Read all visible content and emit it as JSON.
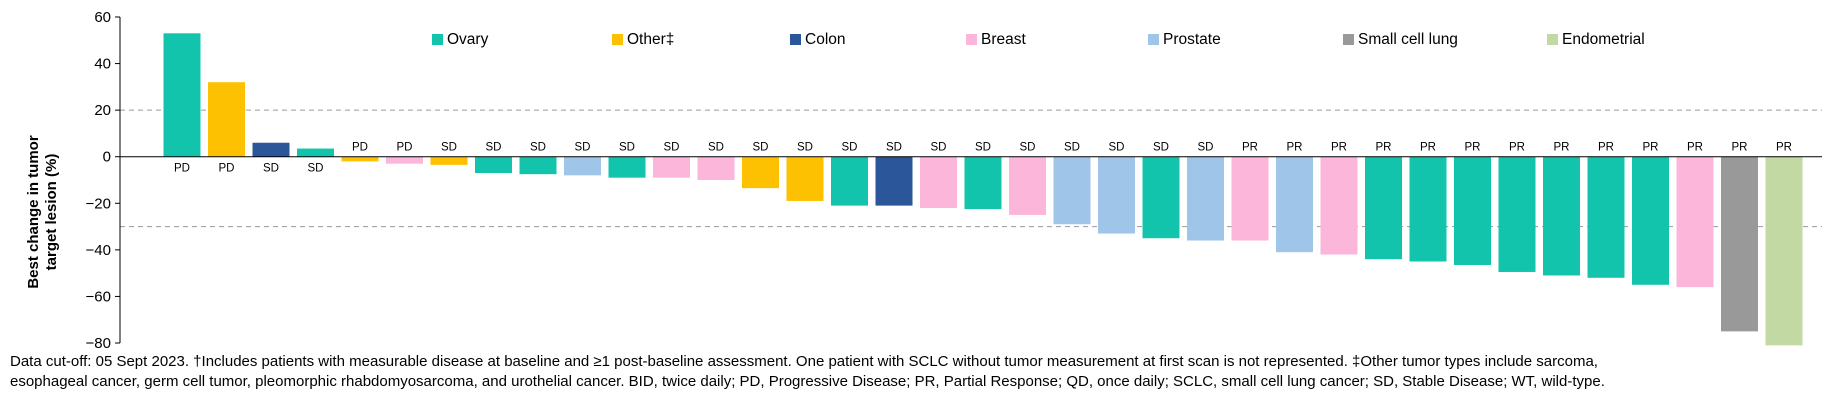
{
  "chart_data": {
    "type": "bar",
    "ylabel": "Best change in tumor target lesion (%)",
    "ylabel_lines": [
      "Best change in tumor",
      "target lesion (%)"
    ],
    "ylim": [
      -80,
      60
    ],
    "yticks": [
      -80,
      -60,
      -40,
      -20,
      0,
      20,
      40,
      60
    ],
    "reference_lines": [
      20,
      -30
    ],
    "grid": false,
    "legend_position": "top",
    "legend": [
      {
        "name": "Ovary",
        "color": "#13C4AC"
      },
      {
        "name": "Other‡",
        "color": "#FDC102"
      },
      {
        "name": "Colon",
        "color": "#2B579A"
      },
      {
        "name": "Breast",
        "color": "#FBB6DA"
      },
      {
        "name": "Prostate",
        "color": "#9FC5E8"
      },
      {
        "name": "Small cell lung",
        "color": "#999999"
      },
      {
        "name": "Endometrial",
        "color": "#C2D9A3"
      }
    ],
    "bars": [
      {
        "type": "Ovary",
        "value": 53,
        "response": "PD"
      },
      {
        "type": "Other‡",
        "value": 32,
        "response": "PD"
      },
      {
        "type": "Colon",
        "value": 6,
        "response": "SD"
      },
      {
        "type": "Ovary",
        "value": 3.5,
        "response": "SD"
      },
      {
        "type": "Other‡",
        "value": -2,
        "response": "PD"
      },
      {
        "type": "Breast",
        "value": -3,
        "response": "PD"
      },
      {
        "type": "Other‡",
        "value": -3.5,
        "response": "SD"
      },
      {
        "type": "Ovary",
        "value": -7,
        "response": "SD"
      },
      {
        "type": "Ovary",
        "value": -7.5,
        "response": "SD"
      },
      {
        "type": "Prostate",
        "value": -8,
        "response": "SD"
      },
      {
        "type": "Ovary",
        "value": -9,
        "response": "SD"
      },
      {
        "type": "Breast",
        "value": -9,
        "response": "SD"
      },
      {
        "type": "Breast",
        "value": -10,
        "response": "SD"
      },
      {
        "type": "Other‡",
        "value": -13.5,
        "response": "SD"
      },
      {
        "type": "Other‡",
        "value": -19,
        "response": "SD"
      },
      {
        "type": "Ovary",
        "value": -21,
        "response": "SD"
      },
      {
        "type": "Colon",
        "value": -21,
        "response": "SD"
      },
      {
        "type": "Breast",
        "value": -22,
        "response": "SD"
      },
      {
        "type": "Ovary",
        "value": -22.5,
        "response": "SD"
      },
      {
        "type": "Breast",
        "value": -25,
        "response": "SD"
      },
      {
        "type": "Prostate",
        "value": -29,
        "response": "SD"
      },
      {
        "type": "Prostate",
        "value": -33,
        "response": "SD"
      },
      {
        "type": "Ovary",
        "value": -35,
        "response": "SD"
      },
      {
        "type": "Prostate",
        "value": -36,
        "response": "SD"
      },
      {
        "type": "Breast",
        "value": -36,
        "response": "PR"
      },
      {
        "type": "Prostate",
        "value": -41,
        "response": "PR"
      },
      {
        "type": "Breast",
        "value": -42,
        "response": "PR"
      },
      {
        "type": "Ovary",
        "value": -44,
        "response": "PR"
      },
      {
        "type": "Ovary",
        "value": -45,
        "response": "PR"
      },
      {
        "type": "Ovary",
        "value": -46.5,
        "response": "PR"
      },
      {
        "type": "Ovary",
        "value": -49.5,
        "response": "PR"
      },
      {
        "type": "Ovary",
        "value": -51,
        "response": "PR"
      },
      {
        "type": "Ovary",
        "value": -52,
        "response": "PR"
      },
      {
        "type": "Ovary",
        "value": -55,
        "response": "PR"
      },
      {
        "type": "Breast",
        "value": -56,
        "response": "PR"
      },
      {
        "type": "Small cell lung",
        "value": -75,
        "response": "PR"
      },
      {
        "type": "Endometrial",
        "value": -81,
        "response": "PR"
      }
    ]
  },
  "footnote": {
    "line1": "Data cut-off: 05 Sept 2023. †Includes patients with measurable disease at baseline and ≥1 post-baseline assessment. One patient with SCLC without tumor measurement at first scan is not represented. ‡Other tumor types include sarcoma,",
    "line2": "esophageal cancer, germ cell tumor, pleomorphic rhabdomyosarcoma, and urothelial cancer. BID, twice daily; PD, Progressive Disease; PR, Partial Response; QD, once daily; SCLC, small cell lung cancer; SD, Stable Disease; WT, wild-type."
  }
}
